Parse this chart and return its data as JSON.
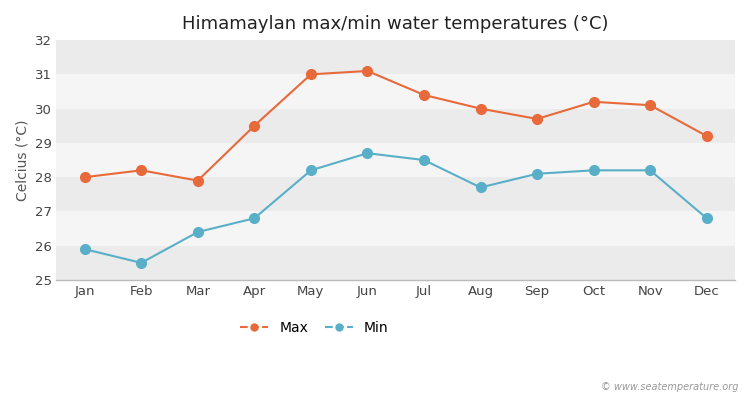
{
  "title": "Himamaylan max/min water temperatures (°C)",
  "ylabel": "Celcius (°C)",
  "months": [
    "Jan",
    "Feb",
    "Mar",
    "Apr",
    "May",
    "Jun",
    "Jul",
    "Aug",
    "Sep",
    "Oct",
    "Nov",
    "Dec"
  ],
  "max_temps": [
    28.0,
    28.2,
    27.9,
    29.5,
    31.0,
    31.1,
    30.4,
    30.0,
    29.7,
    30.2,
    30.1,
    29.2
  ],
  "min_temps": [
    25.9,
    25.5,
    26.4,
    26.8,
    28.2,
    28.7,
    28.5,
    27.7,
    28.1,
    28.2,
    28.2,
    26.8
  ],
  "max_color": "#e8693a",
  "min_color": "#5aafc8",
  "bg_color": "#ffffff",
  "band_colors": [
    "#ebebeb",
    "#f5f5f5"
  ],
  "ylim": [
    25,
    32
  ],
  "yticks": [
    25,
    26,
    27,
    28,
    29,
    30,
    31,
    32
  ],
  "legend_labels": [
    "Max",
    "Min"
  ],
  "watermark": "© www.seatemperature.org",
  "title_fontsize": 13,
  "axis_label_fontsize": 10,
  "tick_fontsize": 9.5,
  "legend_fontsize": 10
}
